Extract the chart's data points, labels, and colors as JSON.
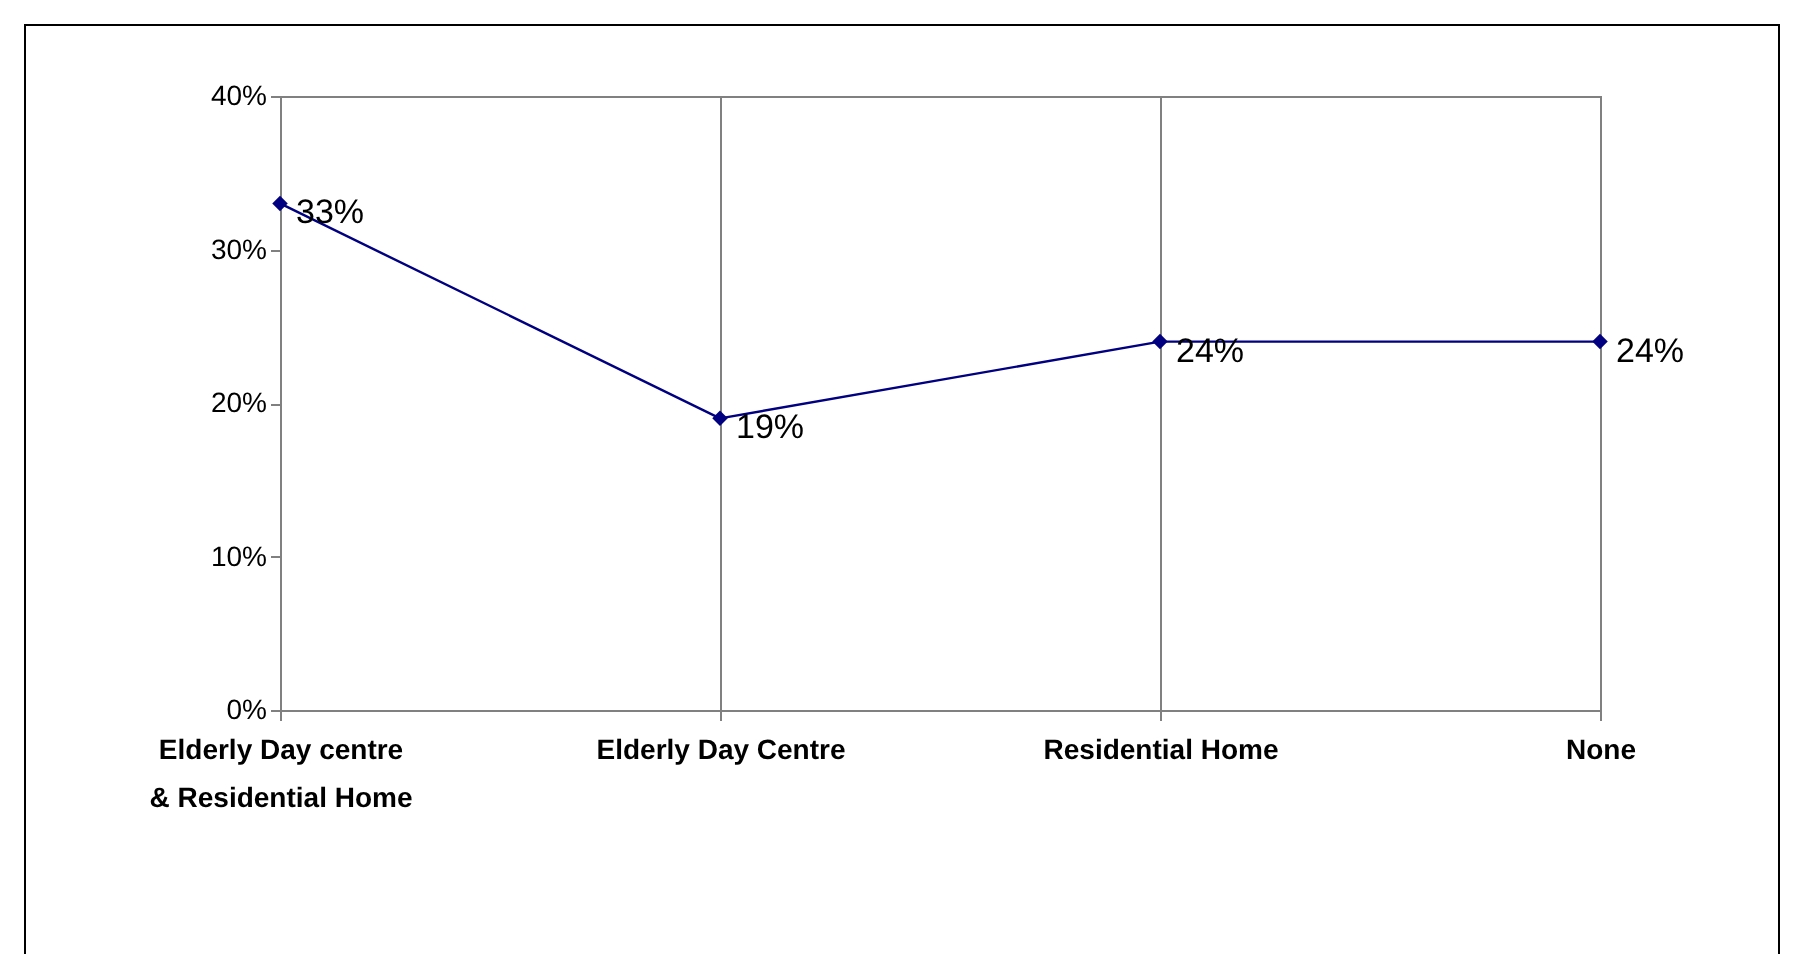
{
  "chart_data": {
    "type": "line",
    "categories": [
      "Elderly Day centre & Residential Home",
      "Elderly Day Centre",
      "Residential Home",
      "None"
    ],
    "series": [
      {
        "color": "#000080",
        "values": [
          33,
          19,
          24,
          24
        ],
        "value_labels": [
          "33%",
          "19%",
          "24%",
          "24%"
        ]
      }
    ],
    "ylim": [
      0,
      40
    ],
    "yticks": [
      {
        "value": 0,
        "label": "0%"
      },
      {
        "value": 10,
        "label": "10%"
      },
      {
        "value": 20,
        "label": "20%"
      },
      {
        "value": 30,
        "label": "30%"
      },
      {
        "value": 40,
        "label": "40%"
      }
    ],
    "grid": "x",
    "marker": "diamond",
    "legend": false
  }
}
